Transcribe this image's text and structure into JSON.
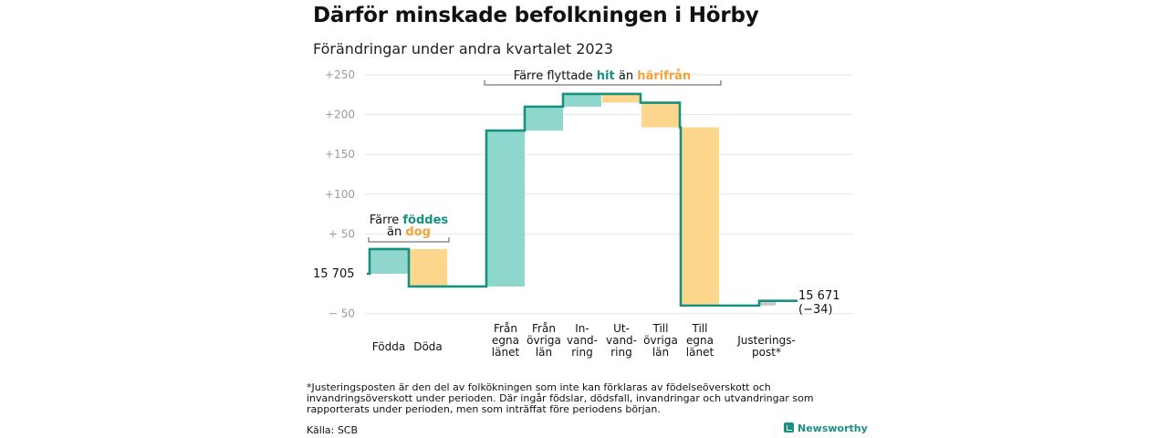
{
  "title": "Därför minskade befolkningen i Hörby",
  "subtitle": "Förändringar under andra kvartalet 2023",
  "chart_data": {
    "type": "waterfall",
    "y_ticks": [
      "+250",
      "+200",
      "+150",
      "+100",
      "+ 50",
      "15  705",
      "− 50"
    ],
    "y_range": [
      -60,
      260
    ],
    "start_value": 15705,
    "start_label": "15  705",
    "end_label_value": "15 671",
    "end_label_change": "(−34)",
    "series": [
      {
        "name": "Födda",
        "label": [
          "Födda"
        ],
        "from": 0,
        "to": 31,
        "color": "#8fd6cd",
        "group": "natural"
      },
      {
        "name": "Döda",
        "label": [
          "Döda"
        ],
        "from": 31,
        "to": -16,
        "color": "#fbd68c",
        "group": "natural"
      },
      {
        "name": "Från egna länet",
        "label": [
          "Från",
          "egna",
          "länet"
        ],
        "from": -16,
        "to": 180,
        "color": "#8fd6cd",
        "group": "migration"
      },
      {
        "name": "Från övriga län",
        "label": [
          "Från",
          "övriga",
          "län"
        ],
        "from": 180,
        "to": 210,
        "color": "#8fd6cd",
        "group": "migration"
      },
      {
        "name": "Invandring",
        "label": [
          "In-",
          "vand-",
          "ring"
        ],
        "from": 210,
        "to": 226,
        "color": "#8fd6cd",
        "group": "migration"
      },
      {
        "name": "Utvandring",
        "label": [
          "Ut-",
          "vand-",
          "ring"
        ],
        "from": 226,
        "to": 215,
        "color": "#fbd68c",
        "group": "migration"
      },
      {
        "name": "Till övriga län",
        "label": [
          "Till",
          "övriga",
          "län"
        ],
        "from": 215,
        "to": 184,
        "color": "#fbd68c",
        "group": "migration"
      },
      {
        "name": "Till egna länet",
        "label": [
          "Till",
          "egna",
          "länet"
        ],
        "from": 184,
        "to": -40,
        "color": "#fbd68c",
        "group": "migration"
      },
      {
        "name": "Justeringspost",
        "label": [
          "Justerings-",
          "post*"
        ],
        "from": -40,
        "to": -34,
        "color": "#c8c8c8",
        "group": "adjust"
      }
    ],
    "annotations": [
      {
        "line1": "Färre",
        "highlight1": "föddes",
        "line2": "än",
        "highlight2": "dog"
      },
      {
        "line1": "Färre flyttade",
        "highlight1": "hit",
        "line2": "än",
        "highlight2": "härifrån"
      }
    ],
    "colors": {
      "increase": "#8fd6cd",
      "decrease": "#fbd68c",
      "step_line": "#16917f",
      "teal_text": "#16917f",
      "orange_text": "#f2a33a",
      "adjust": "#c8c8c8",
      "grid": "#e6e6e6"
    }
  },
  "footnote": "*Justeringsposten är den del av folkökningen som inte kan förklaras av födelseöverskott och invandringsöverskott under perioden. Där ingår födslar, dödsfall, invandringar och utvandringar som rapporterats under perioden, men som inträffat före periodens början.",
  "source": "Källa: SCB",
  "brand": "Newsworthy"
}
